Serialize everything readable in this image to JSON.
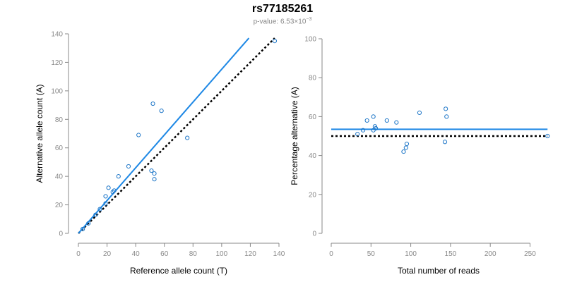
{
  "header": {
    "title": "rs77185261",
    "pvalue_prefix": "p-value: 6.53×10",
    "pvalue_exponent": "−3"
  },
  "style": {
    "point_color": "#1f77c8",
    "fit_color": "#1e88e5",
    "reference_color": "#000000"
  },
  "chart_data": [
    {
      "type": "scatter",
      "xlabel": "Reference allele count (T)",
      "ylabel": "Alternative allele count (A)",
      "xlim": [
        0,
        140
      ],
      "ylim": [
        0,
        140
      ],
      "xticks": [
        0,
        20,
        40,
        60,
        80,
        100,
        120,
        140
      ],
      "yticks": [
        0,
        20,
        40,
        60,
        80,
        100,
        120,
        140
      ],
      "points": [
        [
          3,
          3
        ],
        [
          7,
          7
        ],
        [
          12,
          13
        ],
        [
          15,
          17
        ],
        [
          19,
          21
        ],
        [
          19,
          26
        ],
        [
          21,
          32
        ],
        [
          24,
          29
        ],
        [
          25,
          30
        ],
        [
          28,
          40
        ],
        [
          35,
          47
        ],
        [
          42,
          69
        ],
        [
          51,
          44
        ],
        [
          52,
          91
        ],
        [
          53,
          42
        ],
        [
          53,
          38
        ],
        [
          58,
          86
        ],
        [
          76,
          67
        ],
        [
          137,
          135
        ]
      ],
      "fit_line": {
        "x": [
          0,
          119
        ],
        "y": [
          0,
          137
        ]
      },
      "reference_line": {
        "x": [
          0,
          137
        ],
        "y": [
          0,
          137
        ]
      },
      "grid": false,
      "legend": "none"
    },
    {
      "type": "scatter",
      "xlabel": "Total number of reads",
      "ylabel": "Percentage alternative (A)",
      "xlim": [
        0,
        270
      ],
      "ylim": [
        0,
        100
      ],
      "xticks": [
        0,
        50,
        100,
        150,
        200,
        250
      ],
      "yticks": [
        0,
        20,
        40,
        60,
        80,
        100
      ],
      "points": [
        [
          33,
          51
        ],
        [
          40,
          53
        ],
        [
          45,
          58
        ],
        [
          53,
          53
        ],
        [
          53,
          60
        ],
        [
          55,
          55
        ],
        [
          56,
          54
        ],
        [
          70,
          58
        ],
        [
          82,
          57
        ],
        [
          91,
          42
        ],
        [
          94,
          44
        ],
        [
          95,
          46
        ],
        [
          111,
          62
        ],
        [
          143,
          47
        ],
        [
          144,
          64
        ],
        [
          145,
          60
        ],
        [
          272,
          50
        ]
      ],
      "fit_line": {
        "x": [
          0,
          272
        ],
        "y": [
          53.5,
          53.5
        ]
      },
      "reference_line": {
        "x": [
          0,
          272
        ],
        "y": [
          50,
          50
        ]
      },
      "grid": false,
      "legend": "none"
    }
  ]
}
